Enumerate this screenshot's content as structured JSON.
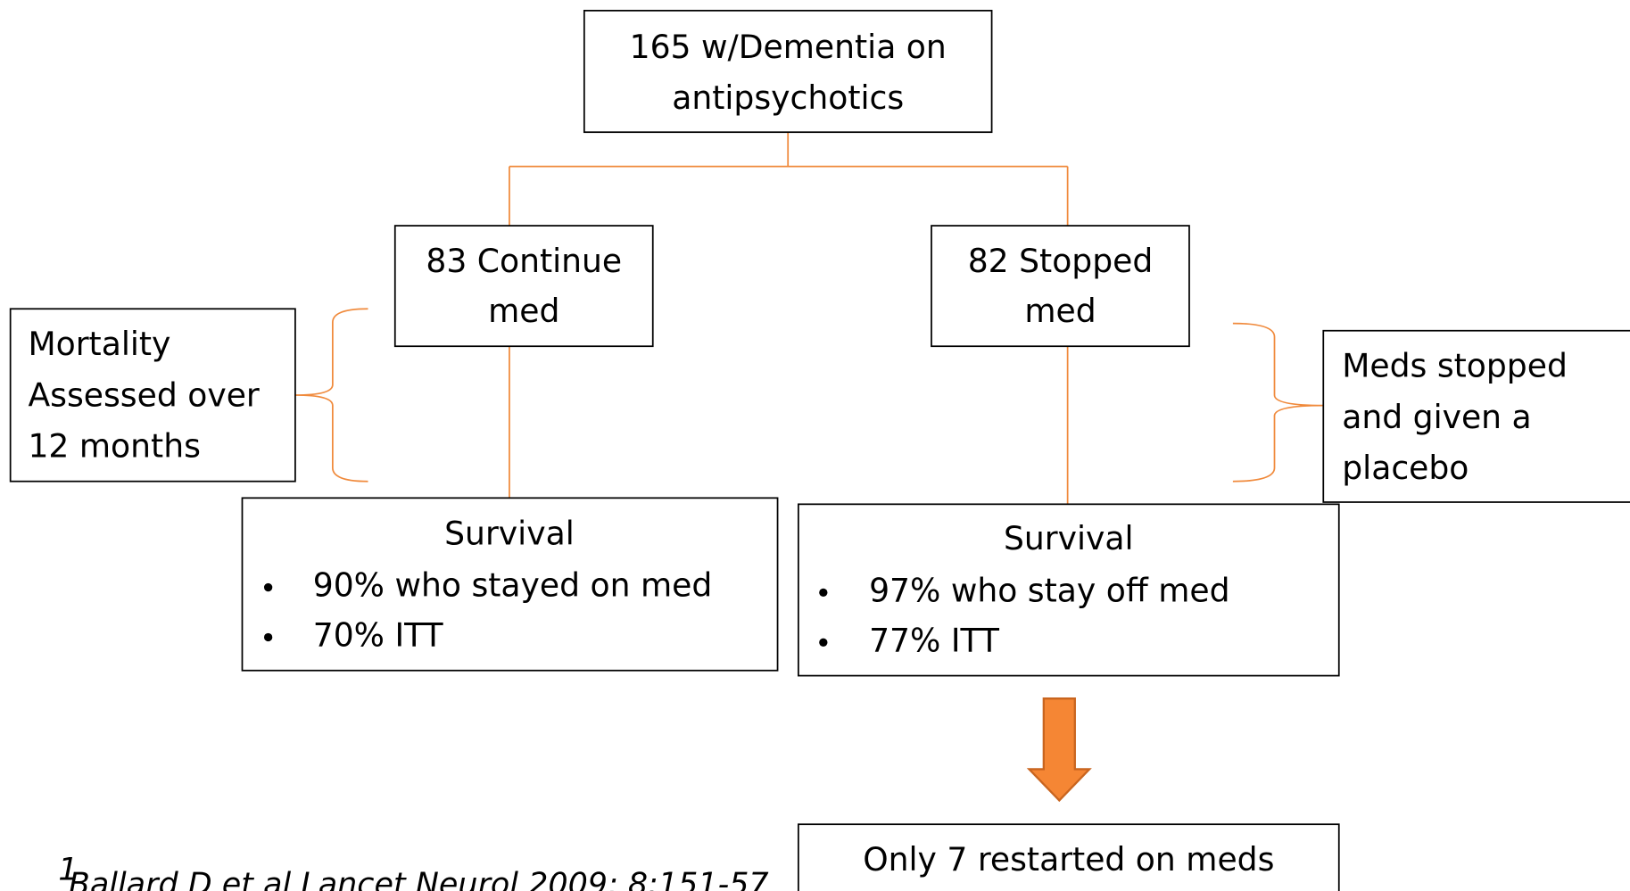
{
  "nodes": [
    {
      "lines": [
        "165 w/Dementia on",
        "antipsychotics"
      ]
    },
    {
      "lines": [
        "83 Continue",
        "med"
      ]
    },
    {
      "lines": [
        "82 Stopped",
        "med"
      ]
    },
    {
      "title": "Survival",
      "bullets": [
        "90% who stayed on med",
        "70% ITT"
      ]
    },
    {
      "title": "Survival",
      "bullets": [
        "97% who stay off med",
        "77% ITT"
      ]
    },
    {
      "lines": [
        "Only 7 restarted on meds"
      ]
    }
  ],
  "notes": [
    {
      "lines": [
        "Mortality",
        "Assessed over",
        "12 months"
      ]
    },
    {
      "lines": [
        "Meds stopped",
        "and given a",
        "placebo"
      ]
    }
  ],
  "citation": {
    "marker": "1",
    "text": "Ballard D et al Lancet Neurol 2009; 8:151-57"
  }
}
